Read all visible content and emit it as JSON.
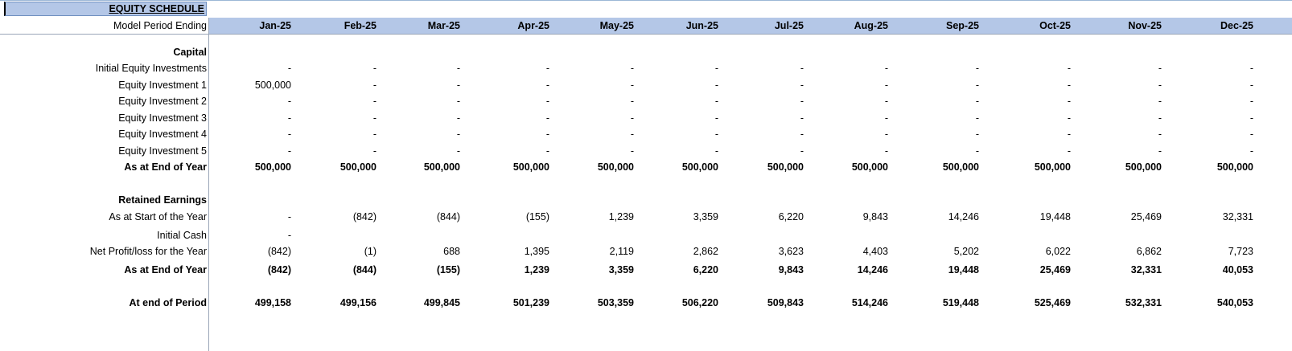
{
  "sheet": {
    "title": "EQUITY SCHEDULE",
    "period_label": "Model Period Ending",
    "months": [
      "Jan-25",
      "Feb-25",
      "Mar-25",
      "Apr-25",
      "May-25",
      "Jun-25",
      "Jul-25",
      "Aug-25",
      "Sep-25",
      "Oct-25",
      "Nov-25",
      "Dec-25"
    ],
    "rows": [
      {
        "label": "Capital",
        "bold": true,
        "values": []
      },
      {
        "label": "Initial Equity Investments",
        "bold": false,
        "values": [
          "-",
          "-",
          "-",
          "-",
          "-",
          "-",
          "-",
          "-",
          "-",
          "-",
          "-",
          "-"
        ]
      },
      {
        "label": "Equity Investment 1",
        "bold": false,
        "values": [
          "500,000",
          "-",
          "-",
          "-",
          "-",
          "-",
          "-",
          "-",
          "-",
          "-",
          "-",
          "-"
        ]
      },
      {
        "label": "Equity Investment 2",
        "bold": false,
        "values": [
          "-",
          "-",
          "-",
          "-",
          "-",
          "-",
          "-",
          "-",
          "-",
          "-",
          "-",
          "-"
        ]
      },
      {
        "label": "Equity Investment 3",
        "bold": false,
        "values": [
          "-",
          "-",
          "-",
          "-",
          "-",
          "-",
          "-",
          "-",
          "-",
          "-",
          "-",
          "-"
        ]
      },
      {
        "label": "Equity Investment 4",
        "bold": false,
        "values": [
          "-",
          "-",
          "-",
          "-",
          "-",
          "-",
          "-",
          "-",
          "-",
          "-",
          "-",
          "-"
        ]
      },
      {
        "label": "Equity Investment 5",
        "bold": false,
        "values": [
          "-",
          "-",
          "-",
          "-",
          "-",
          "-",
          "-",
          "-",
          "-",
          "-",
          "-",
          "-"
        ]
      },
      {
        "label": "As at End of Year",
        "bold": true,
        "values": [
          "500,000",
          "500,000",
          "500,000",
          "500,000",
          "500,000",
          "500,000",
          "500,000",
          "500,000",
          "500,000",
          "500,000",
          "500,000",
          "500,000"
        ]
      },
      {
        "label": "Retained Earnings",
        "bold": true,
        "values": []
      },
      {
        "label": "As at Start of the Year",
        "bold": false,
        "values": [
          "-",
          "(842)",
          "(844)",
          "(155)",
          "1,239",
          "3,359",
          "6,220",
          "9,843",
          "14,246",
          "19,448",
          "25,469",
          "32,331"
        ]
      },
      {
        "label": "Initial Cash",
        "bold": false,
        "values": [
          "-"
        ]
      },
      {
        "label": "Net Profit/loss for the Year",
        "bold": false,
        "values": [
          "(842)",
          "(1)",
          "688",
          "1,395",
          "2,119",
          "2,862",
          "3,623",
          "4,403",
          "5,202",
          "6,022",
          "6,862",
          "7,723"
        ]
      },
      {
        "label": "As at End of Year",
        "bold": true,
        "values": [
          "(842)",
          "(844)",
          "(155)",
          "1,239",
          "3,359",
          "6,220",
          "9,843",
          "14,246",
          "19,448",
          "25,469",
          "32,331",
          "40,053"
        ]
      },
      {
        "label": "At end of Period",
        "bold": true,
        "values": [
          "499,158",
          "499,156",
          "499,845",
          "501,239",
          "503,359",
          "506,220",
          "509,843",
          "514,246",
          "519,448",
          "525,469",
          "532,331",
          "540,053"
        ]
      }
    ]
  }
}
